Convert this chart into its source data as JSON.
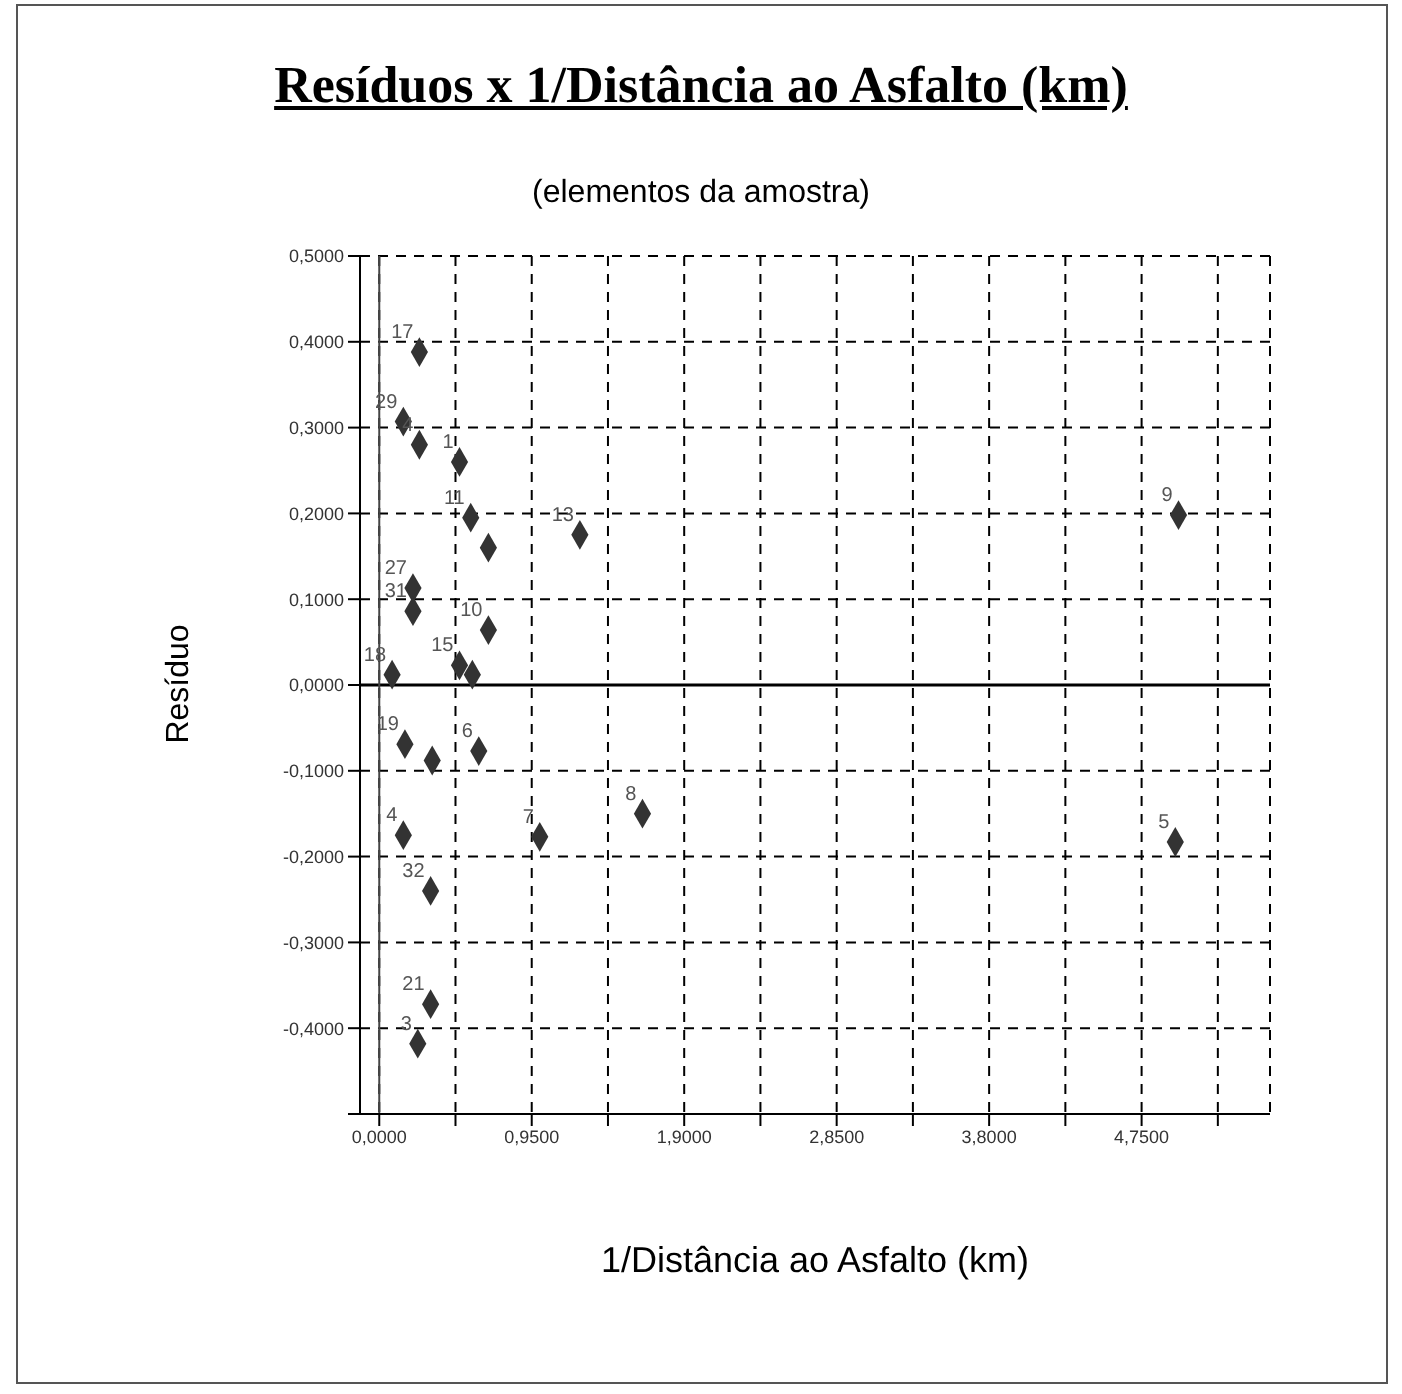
{
  "chart_data": {
    "type": "scatter",
    "title": "Resíduos x 1/Distância ao Asfalto (km)",
    "subtitle": "(elementos da amostra)",
    "xlabel": "1/Distância ao Asfalto (km)",
    "ylabel": "Resíduo",
    "x": [
      0.25,
      0.15,
      0.25,
      0.5,
      0.57,
      0.68,
      1.25,
      0.21,
      0.21,
      0.68,
      0.5,
      0.58,
      0.08,
      0.16,
      0.33,
      0.62,
      1.64,
      1.0,
      0.15,
      0.32,
      0.32,
      0.24,
      4.98,
      4.96
    ],
    "series": [
      {
        "color": "#333333",
        "values": [
          0.388,
          0.307,
          0.28,
          0.26,
          0.195,
          0.16,
          0.175,
          0.113,
          0.086,
          0.064,
          0.023,
          0.012,
          0.012,
          -0.069,
          -0.088,
          -0.077,
          -0.15,
          -0.177,
          -0.175,
          -0.24,
          -0.372,
          -0.418,
          0.198,
          -0.183
        ]
      }
    ],
    "marker": "diamond",
    "grid": true,
    "xlim": [
      -0.12,
      5.55
    ],
    "ylim": [
      -0.5,
      0.5
    ],
    "xticks": [
      {
        "value": 0,
        "label": "0,0000"
      },
      {
        "value": 0.475,
        "label": null
      },
      {
        "value": 0.95,
        "label": "0,9500"
      },
      {
        "value": 1.425,
        "label": null
      },
      {
        "value": 1.9,
        "label": "1,9000"
      },
      {
        "value": 2.375,
        "label": null
      },
      {
        "value": 2.85,
        "label": "2,8500"
      },
      {
        "value": 3.325,
        "label": null
      },
      {
        "value": 3.8,
        "label": "3,8000"
      },
      {
        "value": 4.275,
        "label": null
      },
      {
        "value": 4.75,
        "label": "4,7500"
      },
      {
        "value": 5.225,
        "label": null
      }
    ],
    "yticks": [
      {
        "value": -0.5,
        "label": null
      },
      {
        "value": -0.4,
        "label": "-0,4000"
      },
      {
        "value": -0.3,
        "label": "-0,3000"
      },
      {
        "value": -0.2,
        "label": "-0,2000"
      },
      {
        "value": -0.1,
        "label": "-0,1000"
      },
      {
        "value": 0,
        "label": "0,0000"
      },
      {
        "value": 0.1,
        "label": "0,1000"
      },
      {
        "value": 0.2,
        "label": "0,2000"
      },
      {
        "value": 0.3,
        "label": "0,3000"
      },
      {
        "value": 0.4,
        "label": "0,4000"
      },
      {
        "value": 0.5,
        "label": "0,5000"
      }
    ],
    "ref_lines": [
      {
        "axis": "y",
        "value": 0,
        "color": "#000000"
      },
      {
        "axis": "x",
        "value": 0,
        "color": "#444444"
      }
    ],
    "annotations": [
      {
        "text": "17",
        "x": 0.25,
        "y": 0.388
      },
      {
        "text": "29",
        "x": 0.15,
        "y": 0.307
      },
      {
        "text": "4",
        "x": 0.25,
        "y": 0.28
      },
      {
        "text": "1",
        "x": 0.5,
        "y": 0.26
      },
      {
        "text": "11",
        "x": 0.57,
        "y": 0.195
      },
      {
        "text": "13",
        "x": 1.25,
        "y": 0.175
      },
      {
        "text": "27",
        "x": 0.21,
        "y": 0.113
      },
      {
        "text": "31",
        "x": 0.21,
        "y": 0.086
      },
      {
        "text": "10",
        "x": 0.68,
        "y": 0.064
      },
      {
        "text": "15",
        "x": 0.5,
        "y": 0.023
      },
      {
        "text": "18",
        "x": 0.08,
        "y": 0.012
      },
      {
        "text": "19",
        "x": 0.16,
        "y": -0.069
      },
      {
        "text": "6",
        "x": 0.62,
        "y": -0.077
      },
      {
        "text": "8",
        "x": 1.64,
        "y": -0.15
      },
      {
        "text": "7",
        "x": 1.0,
        "y": -0.177
      },
      {
        "text": "4",
        "x": 0.15,
        "y": -0.175
      },
      {
        "text": "32",
        "x": 0.32,
        "y": -0.24
      },
      {
        "text": "21",
        "x": 0.32,
        "y": -0.372
      },
      {
        "text": "3",
        "x": 0.24,
        "y": -0.418
      },
      {
        "text": "9",
        "x": 4.98,
        "y": 0.198
      },
      {
        "text": "5",
        "x": 4.96,
        "y": -0.183
      }
    ]
  }
}
